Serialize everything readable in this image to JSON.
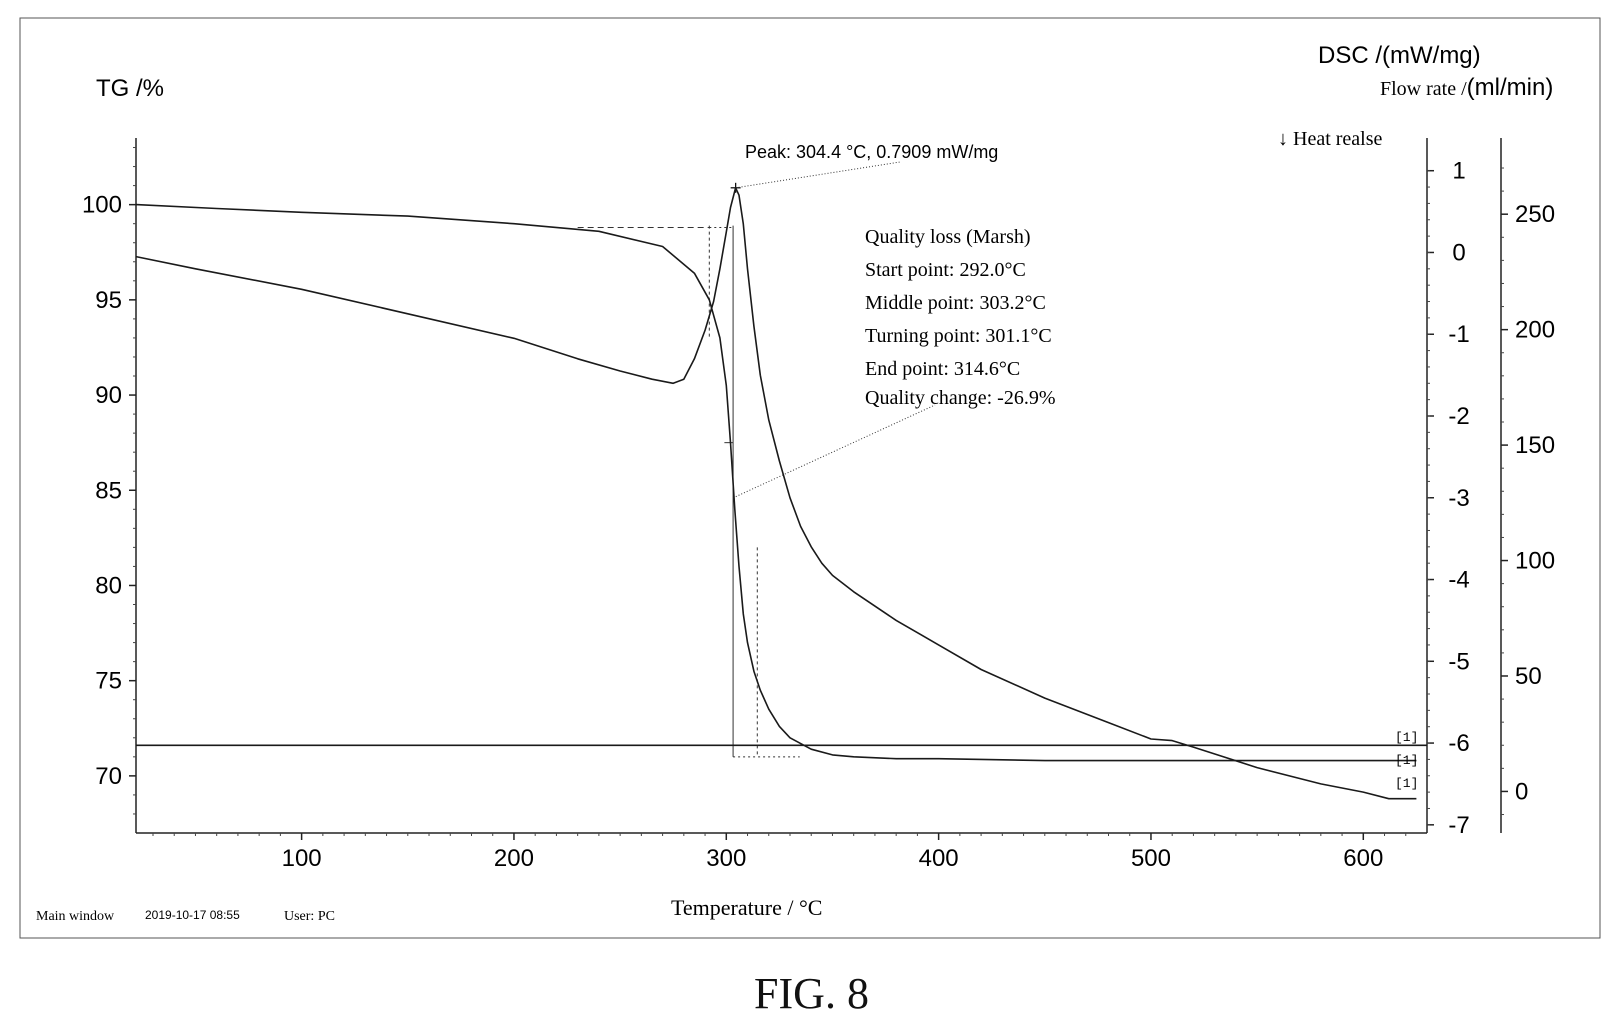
{
  "figure_caption": "FIG. 8",
  "footer": {
    "window_label": "Main window",
    "timestamp": "2019-10-17 08:55",
    "user_label": "User: PC"
  },
  "chart_data": {
    "type": "line",
    "xlabel": "Temperature / °C",
    "ylabel_left": "TG /%",
    "ylabel_right_1": "DSC /(mW/mg)",
    "ylabel_right_2_prefix": "Flow rate /",
    "ylabel_right_2_unit": "(ml/min)",
    "heat_release_label": "↓ Heat realse",
    "xlim": [
      22,
      630
    ],
    "xticks": [
      100,
      200,
      300,
      400,
      500,
      600
    ],
    "ylim_tg": [
      67,
      103.5
    ],
    "yticks_tg": [
      70,
      75,
      80,
      85,
      90,
      95,
      100
    ],
    "ylim_dsc": [
      -7.1,
      1.4
    ],
    "yticks_dsc": [
      1,
      0,
      -1,
      -2,
      -3,
      -4,
      -5,
      -6,
      -7
    ],
    "ylim_flow": [
      -18,
      283
    ],
    "yticks_flow": [
      250,
      200,
      150,
      100,
      50,
      0
    ],
    "grid": false,
    "peak_annotation": {
      "text": "Peak: 304.4 °C, 0.7909 mW/mg",
      "x": 304.4,
      "dsc": 0.7909
    },
    "quality_loss": {
      "title": "Quality loss (Marsh)",
      "lines": [
        "Start point:   292.0°C",
        "Middle point:   303.2°C",
        "Turning point:   301.1°C",
        "End point:  314.6°C",
        "Quality change:   -26.9%"
      ],
      "start": 292.0,
      "middle": 303.2,
      "turning": 301.1,
      "end": 314.6,
      "change_percent": -26.9
    },
    "curve_tags": [
      "[1]",
      "[1]",
      "[1]"
    ],
    "series": [
      {
        "axis": "tg",
        "x": [
          22,
          60,
          100,
          150,
          200,
          240,
          270,
          285,
          292,
          297,
          300,
          302,
          304,
          306,
          308,
          310,
          313,
          316,
          320,
          325,
          330,
          340,
          350,
          360,
          380,
          400,
          450,
          500,
          550,
          600,
          625
        ],
        "y": [
          100.0,
          99.8,
          99.6,
          99.4,
          99.0,
          98.6,
          97.8,
          96.4,
          95.0,
          93.0,
          90.5,
          87.5,
          84.0,
          81.0,
          78.5,
          77.0,
          75.5,
          74.5,
          73.5,
          72.6,
          72.0,
          71.4,
          71.1,
          71.0,
          70.9,
          70.9,
          70.8,
          70.8,
          70.8,
          70.8,
          70.8
        ]
      },
      {
        "axis": "dsc",
        "x": [
          22,
          50,
          100,
          150,
          200,
          230,
          250,
          265,
          275,
          280,
          285,
          290,
          294,
          297,
          300,
          302,
          304.4,
          306,
          308,
          310,
          313,
          316,
          320,
          325,
          330,
          335,
          340,
          345,
          350,
          360,
          380,
          400,
          420,
          450,
          480,
          500,
          510,
          520,
          550,
          580,
          600,
          612,
          625
        ],
        "y": [
          -0.05,
          -0.2,
          -0.45,
          -0.75,
          -1.05,
          -1.3,
          -1.45,
          -1.55,
          -1.6,
          -1.55,
          -1.3,
          -0.95,
          -0.6,
          -0.2,
          0.25,
          0.55,
          0.7909,
          0.7,
          0.35,
          -0.2,
          -0.9,
          -1.5,
          -2.05,
          -2.55,
          -3.0,
          -3.35,
          -3.6,
          -3.8,
          -3.95,
          -4.15,
          -4.5,
          -4.8,
          -5.1,
          -5.45,
          -5.75,
          -5.95,
          -5.97,
          -6.05,
          -6.3,
          -6.5,
          -6.6,
          -6.68,
          -6.68
        ]
      },
      {
        "axis": "flow",
        "x": [
          22,
          630
        ],
        "y": [
          20,
          20
        ]
      }
    ]
  }
}
